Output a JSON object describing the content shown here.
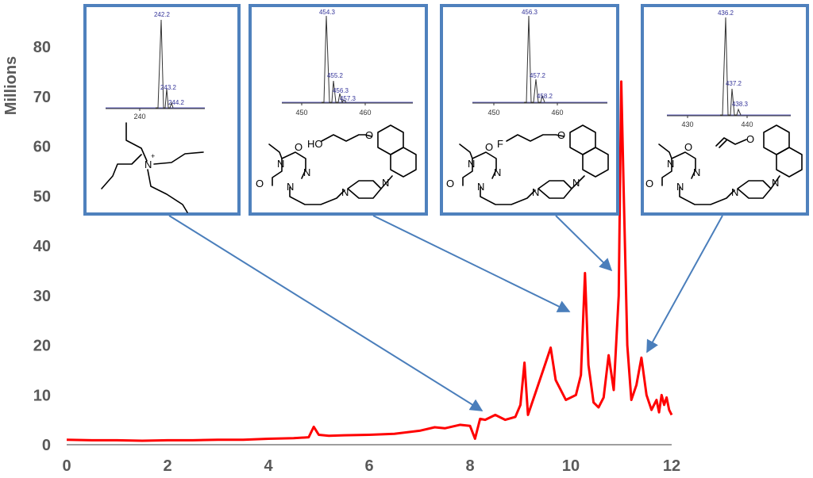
{
  "chart_data": {
    "type": "line",
    "title": "",
    "xlabel": "",
    "ylabel": "Millions",
    "xlim": [
      0,
      12
    ],
    "ylim": [
      0,
      80
    ],
    "x_ticks": [
      "0",
      "2",
      "4",
      "6",
      "8",
      "10",
      "12"
    ],
    "y_ticks": [
      "0",
      "10",
      "20",
      "30",
      "40",
      "50",
      "60",
      "70",
      "80"
    ],
    "grid": false,
    "legend": "none",
    "series": [
      {
        "color": "#ff0000",
        "x": [
          0,
          0.5,
          1,
          1.5,
          2,
          2.5,
          3,
          3.5,
          4,
          4.5,
          4.8,
          4.9,
          5.0,
          5.2,
          5.5,
          6,
          6.5,
          7,
          7.3,
          7.5,
          7.8,
          8.0,
          8.1,
          8.2,
          8.3,
          8.5,
          8.7,
          8.9,
          9.0,
          9.08,
          9.15,
          9.3,
          9.5,
          9.6,
          9.7,
          9.9,
          10.1,
          10.2,
          10.28,
          10.35,
          10.45,
          10.55,
          10.65,
          10.75,
          10.85,
          10.95,
          11.0,
          11.05,
          11.12,
          11.2,
          11.3,
          11.4,
          11.5,
          11.6,
          11.7,
          11.75,
          11.8,
          11.85,
          11.9,
          11.95,
          12.0
        ],
        "values": [
          1.0,
          0.9,
          0.9,
          0.8,
          0.9,
          0.9,
          1.0,
          1.0,
          1.2,
          1.3,
          1.5,
          3.6,
          2.0,
          1.8,
          1.9,
          2.0,
          2.2,
          2.8,
          3.5,
          3.3,
          4.0,
          3.8,
          1.2,
          5.2,
          5.0,
          6.0,
          5.0,
          5.6,
          8.0,
          16.5,
          6.0,
          10.5,
          16.5,
          19.5,
          13.0,
          9.0,
          10.0,
          14.0,
          34.5,
          16.0,
          8.5,
          7.5,
          9.5,
          18.0,
          11.0,
          30.0,
          73.0,
          50.0,
          20.0,
          9.0,
          12.0,
          17.5,
          10.0,
          7.0,
          9.0,
          6.5,
          10.0,
          8.0,
          9.5,
          7.0,
          6.0
        ]
      }
    ]
  },
  "insets": [
    {
      "ms_peaks": [
        "242.2",
        "243.2",
        "244.2"
      ],
      "ms_axis": [
        "240"
      ],
      "structure_atoms": [
        "N",
        "+"
      ]
    },
    {
      "ms_peaks": [
        "454.3",
        "455.2",
        "456.3",
        "457.3"
      ],
      "ms_axis": [
        "450",
        "460"
      ],
      "structure_atoms": [
        "HO",
        "O",
        "O",
        "N",
        "N",
        "O",
        "N",
        "N",
        "N"
      ]
    },
    {
      "ms_peaks": [
        "456.3",
        "457.2",
        "458.2"
      ],
      "ms_axis": [
        "450",
        "460"
      ],
      "structure_atoms": [
        "F",
        "O",
        "O",
        "N",
        "N",
        "O",
        "N",
        "N",
        "N"
      ]
    },
    {
      "ms_peaks": [
        "436.2",
        "437.2",
        "438.3"
      ],
      "ms_axis": [
        "430",
        "440"
      ],
      "structure_atoms": [
        "O",
        "O",
        "N",
        "N",
        "O",
        "N",
        "N",
        "N"
      ]
    }
  ]
}
